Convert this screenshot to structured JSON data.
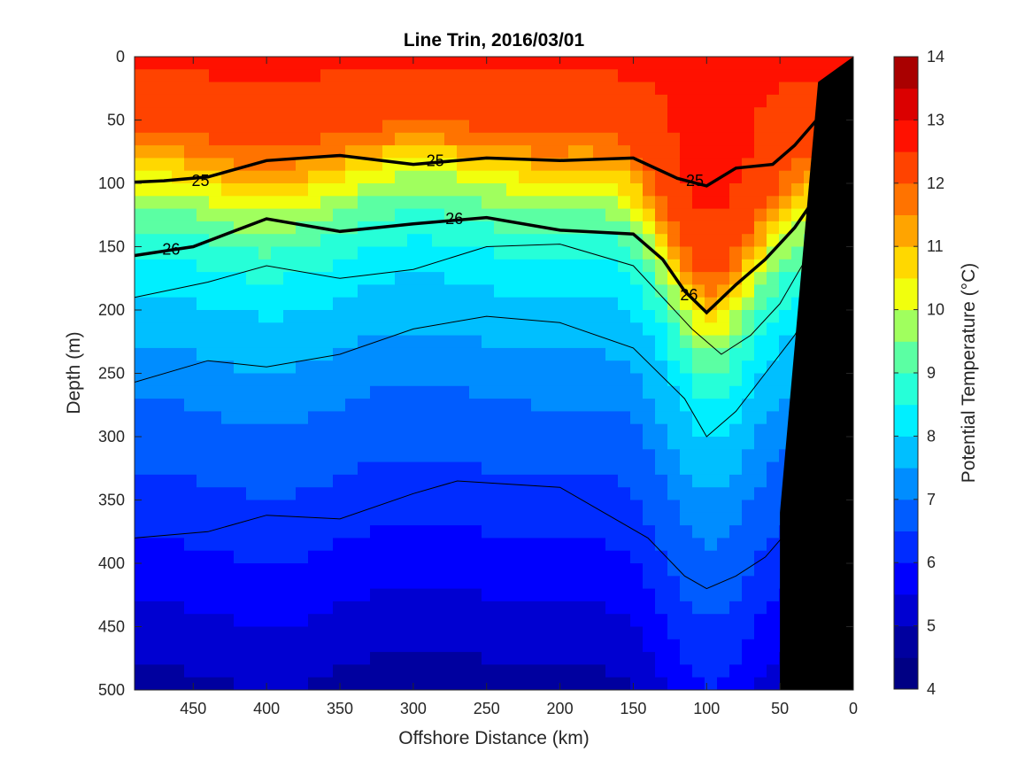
{
  "chart_data": {
    "type": "heatmap",
    "subtype": "filled-contour section",
    "title": "Line Trin, 2016/03/01",
    "xlabel": "Offshore Distance (km)",
    "ylabel": "Depth (m)",
    "colorbar_label": "Potential Temperature (°C)",
    "xlim": [
      490,
      0
    ],
    "x_reversed": true,
    "ylim": [
      500,
      0
    ],
    "y_reversed": true,
    "x_ticks": [
      "450",
      "400",
      "350",
      "300",
      "250",
      "200",
      "150",
      "100",
      "50",
      "0"
    ],
    "y_ticks": [
      "0",
      "50",
      "100",
      "150",
      "200",
      "250",
      "300",
      "350",
      "400",
      "450",
      "500"
    ],
    "colorbar_ticks": [
      "4",
      "5",
      "6",
      "7",
      "8",
      "9",
      "10",
      "11",
      "12",
      "13",
      "14"
    ],
    "clim": [
      4,
      14
    ],
    "colormap_levels": [
      {
        "value": 4.0,
        "color": "#000084"
      },
      {
        "value": 4.5,
        "color": "#00009f"
      },
      {
        "value": 5.0,
        "color": "#0000d1"
      },
      {
        "value": 5.5,
        "color": "#0000fe"
      },
      {
        "value": 6.0,
        "color": "#002cff"
      },
      {
        "value": 6.5,
        "color": "#005cff"
      },
      {
        "value": 7.0,
        "color": "#008dff"
      },
      {
        "value": 7.5,
        "color": "#00bfff"
      },
      {
        "value": 8.0,
        "color": "#00efff"
      },
      {
        "value": 8.5,
        "color": "#26ffd8"
      },
      {
        "value": 9.0,
        "color": "#5bffa3"
      },
      {
        "value": 9.5,
        "color": "#a0ff5e"
      },
      {
        "value": 10.0,
        "color": "#f1ff0d"
      },
      {
        "value": 10.5,
        "color": "#ffd800"
      },
      {
        "value": 11.0,
        "color": "#ffa400"
      },
      {
        "value": 11.5,
        "color": "#ff7300"
      },
      {
        "value": 12.0,
        "color": "#ff4300"
      },
      {
        "value": 12.5,
        "color": "#ff1100"
      },
      {
        "value": 13.0,
        "color": "#db0000"
      },
      {
        "value": 13.5,
        "color": "#a90000"
      }
    ],
    "temperature_profile": {
      "depth_m": [
        0,
        60,
        80,
        100,
        125,
        150,
        180,
        230,
        290,
        350,
        400,
        460,
        500
      ],
      "temp_c": [
        12.6,
        12.2,
        11.5,
        10.6,
        9.6,
        8.9,
        8.2,
        7.6,
        6.9,
        6.4,
        5.9,
        5.3,
        4.9
      ],
      "trough_center_km": 100,
      "trough_depression_m": 110
    },
    "isopycnals_bold": [
      {
        "label": "25",
        "x": [
          490,
          470,
          440,
          400,
          350,
          300,
          250,
          200,
          150,
          120,
          100,
          80,
          55,
          40,
          25,
          20
        ],
        "y": [
          99,
          98,
          95,
          82,
          78,
          85,
          80,
          82,
          80,
          96,
          102,
          88,
          85,
          70,
          50,
          43
        ]
      },
      {
        "label": "26",
        "x": [
          490,
          450,
          400,
          350,
          300,
          250,
          200,
          150,
          130,
          115,
          100,
          80,
          60,
          40,
          25,
          20
        ],
        "y": [
          157,
          150,
          128,
          138,
          132,
          127,
          137,
          140,
          160,
          185,
          202,
          180,
          160,
          135,
          110,
          95
        ]
      }
    ],
    "isopycnals_thin": [
      {
        "x": [
          490,
          440,
          400,
          350,
          300,
          250,
          200,
          150,
          110,
          90,
          70,
          50,
          35,
          20
        ],
        "y": [
          190,
          178,
          165,
          175,
          168,
          150,
          148,
          165,
          215,
          235,
          220,
          195,
          165,
          140
        ]
      },
      {
        "x": [
          490,
          440,
          400,
          350,
          300,
          250,
          200,
          150,
          115,
          100,
          80,
          60,
          40,
          20
        ],
        "y": [
          257,
          240,
          245,
          235,
          215,
          205,
          210,
          230,
          270,
          300,
          280,
          250,
          220,
          180
        ]
      },
      {
        "x": [
          490,
          440,
          400,
          350,
          300,
          270,
          200,
          140,
          115,
          100,
          80,
          60,
          45,
          30
        ],
        "y": [
          380,
          375,
          362,
          365,
          345,
          335,
          340,
          380,
          410,
          420,
          410,
          395,
          375,
          350
        ]
      }
    ],
    "bottom_mask": {
      "x": [
        24,
        0,
        0,
        24,
        50,
        50
      ],
      "y": [
        500,
        500,
        0,
        20,
        360,
        500
      ]
    }
  }
}
